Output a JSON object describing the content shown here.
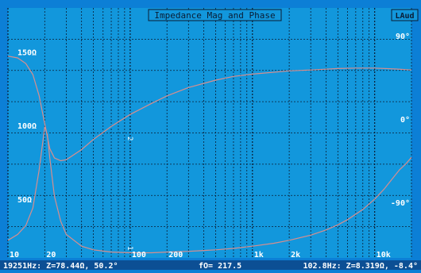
{
  "title": "Impedance Mag and Phase",
  "badge": "LAud",
  "status_left": "19251Hz: Z=78.44Ω, 50.2°",
  "status_center": "fO= 217.5",
  "status_right": "102.8Hz: Z=8.319Ω, -8.4°",
  "cursor_markers": [
    "1",
    "2"
  ],
  "colors": {
    "plot_bg": "#1297dc",
    "grid": "#0a1c33",
    "curve": "#d78e8e",
    "frame": "#0c7fd6",
    "status_bg": "#0c4f94",
    "text": "#ffffff"
  },
  "chart_data": {
    "type": "line",
    "title": "Impedance Mag and Phase",
    "x_scale": "log",
    "xlim": [
      10,
      20000
    ],
    "x_ticks": [
      {
        "value": 10,
        "label": "10"
      },
      {
        "value": 20,
        "label": "20"
      },
      {
        "value": 100,
        "label": "100"
      },
      {
        "value": 200,
        "label": "200"
      },
      {
        "value": 1000,
        "label": "1k"
      },
      {
        "value": 2000,
        "label": "2k"
      },
      {
        "value": 10000,
        "label": "10k"
      }
    ],
    "ylim_left": [
      10,
      180
    ],
    "y_ticks_left": [
      {
        "value": 50,
        "label": "50Ω"
      },
      {
        "value": 100,
        "label": "100Ω"
      },
      {
        "value": 150,
        "label": "150Ω"
      }
    ],
    "ylim_right": [
      -150,
      120
    ],
    "y_ticks_right": [
      {
        "value": 90,
        "label": "90°"
      },
      {
        "value": 0,
        "label": "0°"
      },
      {
        "value": -90,
        "label": "-90°"
      }
    ],
    "grid": true,
    "series": [
      {
        "axis": "left",
        "x": [
          10,
          12,
          14,
          16,
          18,
          20,
          21,
          22,
          24,
          27,
          30,
          40,
          50,
          70,
          100,
          150,
          200,
          300,
          500,
          700,
          1000,
          1500,
          2000,
          3000,
          4000,
          5000,
          6000,
          8000,
          10000,
          12000,
          14000,
          16000,
          18000,
          20000
        ],
        "y": [
          22,
          26,
          32,
          44,
          70,
          99,
          94,
          78,
          52,
          35,
          26,
          18,
          15.5,
          14,
          13.5,
          13.5,
          14,
          14.5,
          15.5,
          16.5,
          18,
          20,
          22,
          25.5,
          29,
          32.5,
          36,
          43,
          50,
          57,
          64,
          70,
          74,
          78.4
        ]
      },
      {
        "axis": "right",
        "x": [
          10,
          12,
          14,
          16,
          18,
          20,
          22,
          24,
          27,
          30,
          40,
          50,
          70,
          100,
          150,
          200,
          300,
          500,
          700,
          1000,
          2000,
          3000,
          5000,
          7000,
          10000,
          15000,
          20000
        ],
        "y": [
          68,
          66,
          60,
          48,
          25,
          -5,
          -32,
          -42,
          -45,
          -44,
          -33,
          -22,
          -8,
          5,
          17,
          25,
          34,
          42,
          46,
          48.5,
          52,
          53,
          54.5,
          55,
          55,
          54,
          53
        ]
      }
    ]
  }
}
